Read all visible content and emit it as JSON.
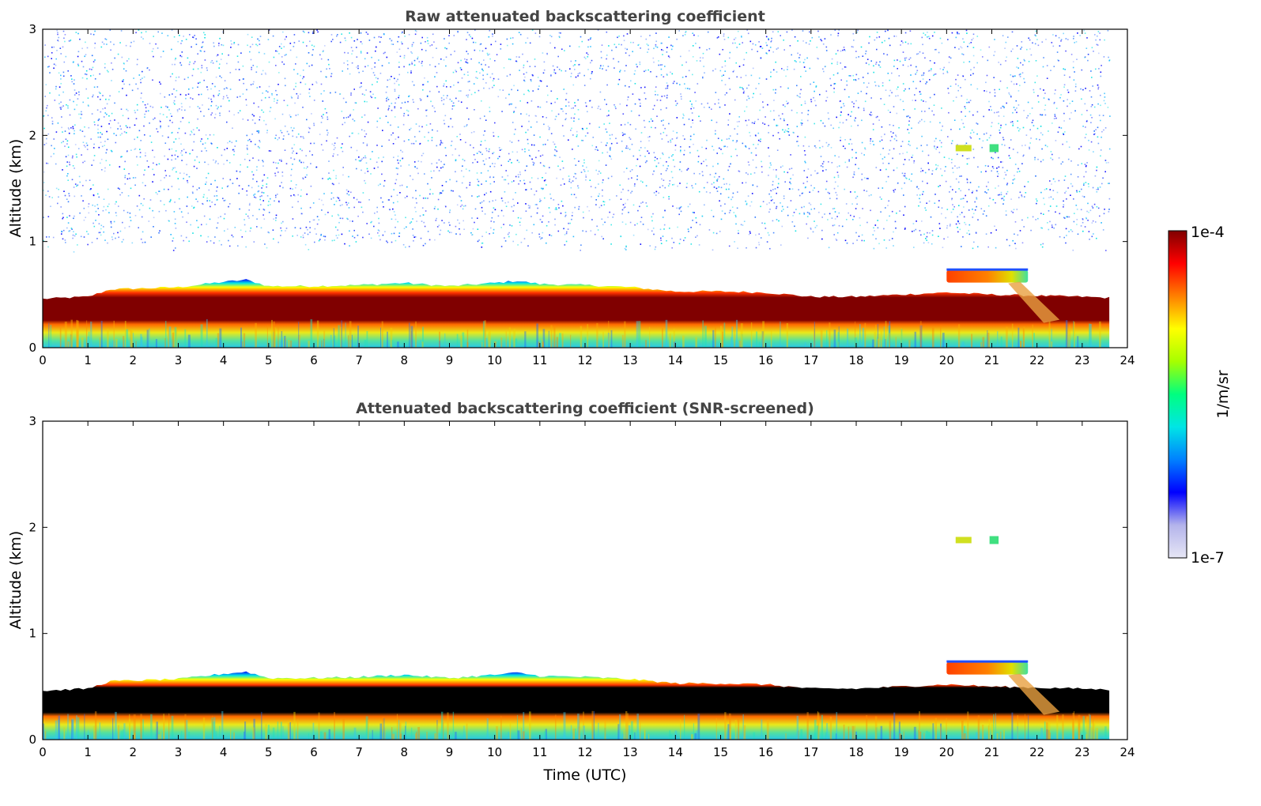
{
  "colors": {
    "title": "#444444",
    "axis": "#000000",
    "background": "#ffffff",
    "snr_screened_core": "#000000"
  },
  "chart_data": [
    {
      "type": "heatmap",
      "title": "Raw attenuated backscattering coefficient",
      "xlabel": "",
      "ylabel": "Altitude (km)",
      "xlim": [
        0,
        24
      ],
      "ylim": [
        0,
        3
      ],
      "xticks": [
        "0",
        "1",
        "2",
        "3",
        "4",
        "5",
        "6",
        "7",
        "8",
        "9",
        "10",
        "11",
        "12",
        "13",
        "14",
        "15",
        "16",
        "17",
        "18",
        "19",
        "20",
        "21",
        "22",
        "23",
        "24"
      ],
      "yticks": [
        "0",
        "1",
        "2",
        "3"
      ],
      "data_end_hour": 23.6,
      "boundary_layer_top_km": [
        {
          "t": 0,
          "z": 0.46
        },
        {
          "t": 1,
          "z": 0.48
        },
        {
          "t": 1.5,
          "z": 0.55
        },
        {
          "t": 3,
          "z": 0.57
        },
        {
          "t": 4,
          "z": 0.62
        },
        {
          "t": 4.5,
          "z": 0.64
        },
        {
          "t": 5,
          "z": 0.58
        },
        {
          "t": 6,
          "z": 0.58
        },
        {
          "t": 7,
          "z": 0.59
        },
        {
          "t": 8,
          "z": 0.61
        },
        {
          "t": 9,
          "z": 0.58
        },
        {
          "t": 10,
          "z": 0.61
        },
        {
          "t": 10.5,
          "z": 0.63
        },
        {
          "t": 11,
          "z": 0.6
        },
        {
          "t": 12,
          "z": 0.59
        },
        {
          "t": 13,
          "z": 0.57
        },
        {
          "t": 14,
          "z": 0.53
        },
        {
          "t": 15,
          "z": 0.53
        },
        {
          "t": 16,
          "z": 0.52
        },
        {
          "t": 17,
          "z": 0.48
        },
        {
          "t": 18,
          "z": 0.48
        },
        {
          "t": 19,
          "z": 0.5
        },
        {
          "t": 20,
          "z": 0.52
        },
        {
          "t": 21,
          "z": 0.5
        },
        {
          "t": 22,
          "z": 0.49
        },
        {
          "t": 23,
          "z": 0.48
        },
        {
          "t": 23.6,
          "z": 0.47
        }
      ],
      "annotations": [
        {
          "feature": "elevated cloud layer",
          "t_start": 20.0,
          "t_end": 21.8,
          "z_km": 0.68
        },
        {
          "feature": "thin cloud",
          "t_start": 20.2,
          "t_end": 21.2,
          "z_km": 1.88
        }
      ]
    },
    {
      "type": "heatmap",
      "title": "Attenuated backscattering coefficient (SNR-screened)",
      "xlabel": "Time (UTC)",
      "ylabel": "Altitude (km)",
      "xlim": [
        0,
        24
      ],
      "ylim": [
        0,
        3
      ],
      "xticks": [
        "0",
        "1",
        "2",
        "3",
        "4",
        "5",
        "6",
        "7",
        "8",
        "9",
        "10",
        "11",
        "12",
        "13",
        "14",
        "15",
        "16",
        "17",
        "18",
        "19",
        "20",
        "21",
        "22",
        "23",
        "24"
      ],
      "yticks": [
        "0",
        "1",
        "2",
        "3"
      ],
      "data_end_hour": 23.6,
      "annotations": [
        {
          "feature": "elevated cloud layer",
          "t_start": 20.0,
          "t_end": 21.8,
          "z_km": 0.68
        },
        {
          "feature": "thin cloud",
          "t_start": 20.2,
          "t_end": 21.2,
          "z_km": 1.88
        }
      ]
    }
  ],
  "colorbar": {
    "label": "1/m/sr",
    "max_label": "1e-4",
    "min_label": "1e-7",
    "stops": [
      "#e6e6f5",
      "#b4b4eb",
      "#0000ff",
      "#0080ff",
      "#00e5e5",
      "#00ff80",
      "#a6ff00",
      "#ffff00",
      "#ff8000",
      "#ff0000",
      "#800000"
    ]
  }
}
